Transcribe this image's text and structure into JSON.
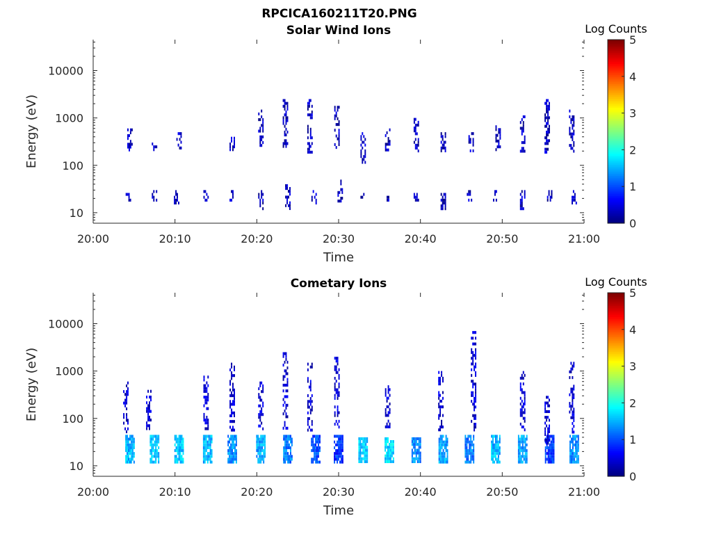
{
  "figure_title": "RPCICA160211T20.PNG",
  "chart_data": [
    {
      "type": "heatmap",
      "title": "Solar Wind Ions",
      "xlabel": "Time",
      "ylabel": "Energy (eV)",
      "x_tick_labels": [
        "20:00",
        "20:10",
        "20:20",
        "20:30",
        "20:40",
        "20:50",
        "21:00"
      ],
      "x_range_minutes": [
        0,
        60
      ],
      "y_scale": "log",
      "y_range": [
        6,
        45000
      ],
      "y_tick_values": [
        10,
        100,
        1000,
        10000
      ],
      "y_tick_labels": [
        "10",
        "100",
        "1000",
        "10000"
      ],
      "colorbar": {
        "label": "Log Counts",
        "range": [
          0,
          5
        ],
        "tick_labels": [
          "0",
          "1",
          "2",
          "3",
          "4",
          "5"
        ]
      },
      "bursts": [
        {
          "t": 4.3,
          "e": [
            18,
            30
          ],
          "v": 0.3
        },
        {
          "t": 7.5,
          "e": [
            18,
            30
          ],
          "v": 0.3
        },
        {
          "t": 10.2,
          "e": [
            15,
            30
          ],
          "v": 0.3
        },
        {
          "t": 13.8,
          "e": [
            18,
            30
          ],
          "v": 0.3
        },
        {
          "t": 17.0,
          "e": [
            18,
            30
          ],
          "v": 0.3
        },
        {
          "t": 20.5,
          "e": [
            12,
            30
          ],
          "v": 0.3
        },
        {
          "t": 23.8,
          "e": [
            12,
            40
          ],
          "v": 0.3
        },
        {
          "t": 27.0,
          "e": [
            15,
            30
          ],
          "v": 0.3
        },
        {
          "t": 30.2,
          "e": [
            18,
            50
          ],
          "v": 0.3
        },
        {
          "t": 33.0,
          "e": [
            18,
            30
          ],
          "v": 0.3
        },
        {
          "t": 36.2,
          "e": [
            18,
            30
          ],
          "v": 0.3
        },
        {
          "t": 39.5,
          "e": [
            18,
            30
          ],
          "v": 0.3
        },
        {
          "t": 42.8,
          "e": [
            12,
            30
          ],
          "v": 0.3
        },
        {
          "t": 46.0,
          "e": [
            18,
            30
          ],
          "v": 0.3
        },
        {
          "t": 49.2,
          "e": [
            18,
            30
          ],
          "v": 0.3
        },
        {
          "t": 52.5,
          "e": [
            12,
            30
          ],
          "v": 0.3
        },
        {
          "t": 55.8,
          "e": [
            18,
            30
          ],
          "v": 0.3
        },
        {
          "t": 58.8,
          "e": [
            15,
            30
          ],
          "v": 0.3
        },
        {
          "t": 4.5,
          "e": [
            200,
            600
          ],
          "v": 0.3
        },
        {
          "t": 7.5,
          "e": [
            200,
            400
          ],
          "v": 0.3
        },
        {
          "t": 10.5,
          "e": [
            200,
            500
          ],
          "v": 0.3
        },
        {
          "t": 17.0,
          "e": [
            200,
            400
          ],
          "v": 0.3
        },
        {
          "t": 20.5,
          "e": [
            250,
            1500
          ],
          "v": 0.3
        },
        {
          "t": 23.5,
          "e": [
            250,
            2500
          ],
          "v": 0.3
        },
        {
          "t": 26.5,
          "e": [
            200,
            2500
          ],
          "v": 0.3
        },
        {
          "t": 29.8,
          "e": [
            200,
            1800
          ],
          "v": 0.3
        },
        {
          "t": 33.0,
          "e": [
            120,
            500
          ],
          "v": 0.3
        },
        {
          "t": 36.0,
          "e": [
            200,
            600
          ],
          "v": 0.3
        },
        {
          "t": 39.5,
          "e": [
            200,
            1000
          ],
          "v": 0.3
        },
        {
          "t": 42.8,
          "e": [
            200,
            500
          ],
          "v": 0.3
        },
        {
          "t": 46.2,
          "e": [
            200,
            500
          ],
          "v": 0.3
        },
        {
          "t": 49.5,
          "e": [
            200,
            700
          ],
          "v": 0.3
        },
        {
          "t": 52.5,
          "e": [
            200,
            1500
          ],
          "v": 0.3
        },
        {
          "t": 55.5,
          "e": [
            200,
            2500
          ],
          "v": 0.3
        },
        {
          "t": 58.5,
          "e": [
            200,
            1500
          ],
          "v": 0.3
        }
      ]
    },
    {
      "type": "heatmap",
      "title": "Cometary Ions",
      "xlabel": "Time",
      "ylabel": "Energy (eV)",
      "x_tick_labels": [
        "20:00",
        "20:10",
        "20:20",
        "20:30",
        "20:40",
        "20:50",
        "21:00"
      ],
      "x_range_minutes": [
        0,
        60
      ],
      "y_scale": "log",
      "y_range": [
        6,
        45000
      ],
      "y_tick_values": [
        10,
        100,
        1000,
        10000
      ],
      "y_tick_labels": [
        "10",
        "100",
        "1000",
        "10000"
      ],
      "colorbar": {
        "label": "Log Counts",
        "range": [
          0,
          5
        ],
        "tick_labels": [
          "0",
          "1",
          "2",
          "3",
          "4",
          "5"
        ]
      },
      "bursts": [
        {
          "t": 4.5,
          "e": [
            12,
            45
          ],
          "v": 1.5
        },
        {
          "t": 7.5,
          "e": [
            12,
            45
          ],
          "v": 1.6
        },
        {
          "t": 10.5,
          "e": [
            12,
            45
          ],
          "v": 1.6
        },
        {
          "t": 14.0,
          "e": [
            12,
            45
          ],
          "v": 1.5
        },
        {
          "t": 17.0,
          "e": [
            12,
            45
          ],
          "v": 1.3
        },
        {
          "t": 20.5,
          "e": [
            12,
            45
          ],
          "v": 1.4
        },
        {
          "t": 23.8,
          "e": [
            12,
            45
          ],
          "v": 1.2
        },
        {
          "t": 27.2,
          "e": [
            12,
            45
          ],
          "v": 1.0
        },
        {
          "t": 30.0,
          "e": [
            12,
            45
          ],
          "v": 0.8
        },
        {
          "t": 33.0,
          "e": [
            12,
            40
          ],
          "v": 1.6
        },
        {
          "t": 36.2,
          "e": [
            12,
            40
          ],
          "v": 1.7
        },
        {
          "t": 39.5,
          "e": [
            12,
            40
          ],
          "v": 1.3
        },
        {
          "t": 42.8,
          "e": [
            12,
            45
          ],
          "v": 1.4
        },
        {
          "t": 46.0,
          "e": [
            12,
            45
          ],
          "v": 1.2
        },
        {
          "t": 49.2,
          "e": [
            12,
            45
          ],
          "v": 1.5
        },
        {
          "t": 52.5,
          "e": [
            12,
            45
          ],
          "v": 1.4
        },
        {
          "t": 55.8,
          "e": [
            12,
            45
          ],
          "v": 0.9
        },
        {
          "t": 58.8,
          "e": [
            12,
            45
          ],
          "v": 1.3
        },
        {
          "t": 4.0,
          "e": [
            50,
            600
          ],
          "v": 0.4
        },
        {
          "t": 6.8,
          "e": [
            60,
            400
          ],
          "v": 0.4
        },
        {
          "t": 13.8,
          "e": [
            60,
            800
          ],
          "v": 0.4
        },
        {
          "t": 17.0,
          "e": [
            60,
            1500
          ],
          "v": 0.4
        },
        {
          "t": 20.5,
          "e": [
            60,
            600
          ],
          "v": 0.4
        },
        {
          "t": 23.5,
          "e": [
            60,
            2500
          ],
          "v": 0.4
        },
        {
          "t": 26.5,
          "e": [
            60,
            1500
          ],
          "v": 0.4
        },
        {
          "t": 29.8,
          "e": [
            60,
            2000
          ],
          "v": 0.4
        },
        {
          "t": 36.0,
          "e": [
            60,
            500
          ],
          "v": 0.4
        },
        {
          "t": 42.5,
          "e": [
            60,
            1000
          ],
          "v": 0.4
        },
        {
          "t": 46.5,
          "e": [
            60,
            7000
          ],
          "v": 0.4
        },
        {
          "t": 52.5,
          "e": [
            60,
            1000
          ],
          "v": 0.4
        },
        {
          "t": 55.5,
          "e": [
            30,
            300
          ],
          "v": 0.4
        },
        {
          "t": 58.5,
          "e": [
            50,
            1800
          ],
          "v": 0.4
        }
      ]
    }
  ]
}
